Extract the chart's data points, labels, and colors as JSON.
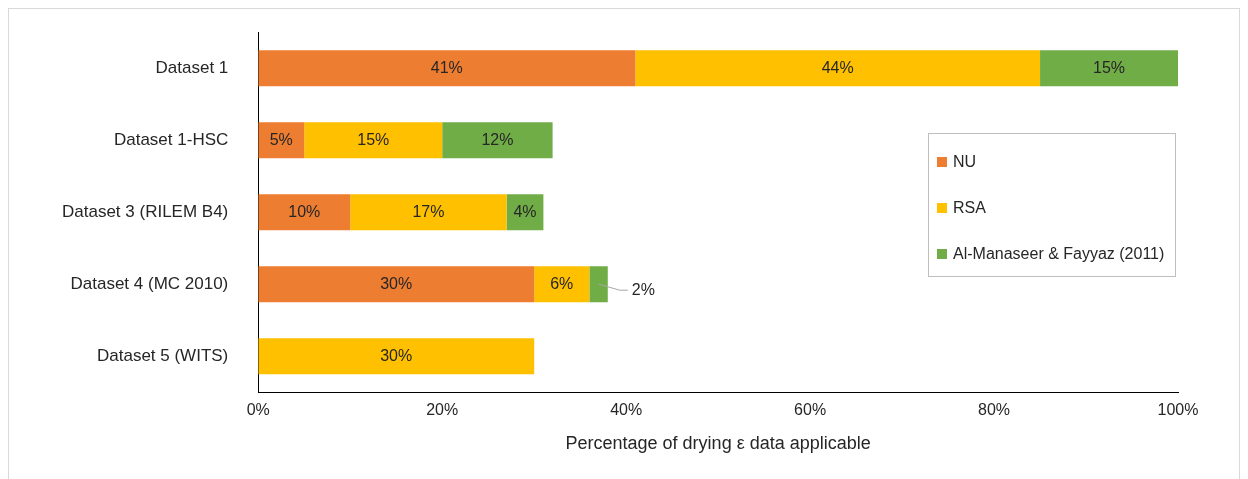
{
  "chart_data": {
    "type": "bar",
    "orientation": "horizontal",
    "stacked": true,
    "categories": [
      "Dataset 1",
      "Dataset 1-HSC",
      "Dataset 3 (RILEM B4)",
      "Dataset 4 (MC 2010)",
      "Dataset 5 (WITS)"
    ],
    "series": [
      {
        "name": "NU",
        "color": "#ed7d31",
        "values": [
          41,
          5,
          10,
          30,
          null
        ],
        "value_labels": [
          "41%",
          "5%",
          "10%",
          "30%",
          null
        ]
      },
      {
        "name": "RSA",
        "color": "#ffc000",
        "values": [
          44,
          15,
          17,
          6,
          30
        ],
        "value_labels": [
          "44%",
          "15%",
          "17%",
          "6%",
          "30%"
        ]
      },
      {
        "name": "Al-Manaseer & Fayyaz (2011)",
        "color": "#70ad47",
        "values": [
          15,
          12,
          4,
          2,
          null
        ],
        "value_labels": [
          "15%",
          "12%",
          "4%",
          "2%",
          null
        ]
      }
    ],
    "xlabel": "Percentage of drying ε data applicable",
    "xlim": [
      0,
      100
    ],
    "xticks": [
      {
        "value": 0,
        "label": "0%"
      },
      {
        "value": 20,
        "label": "20%"
      },
      {
        "value": 40,
        "label": "40%"
      },
      {
        "value": 60,
        "label": "60%"
      },
      {
        "value": 80,
        "label": "80%"
      },
      {
        "value": 100,
        "label": "100%"
      }
    ],
    "legend": "right"
  }
}
